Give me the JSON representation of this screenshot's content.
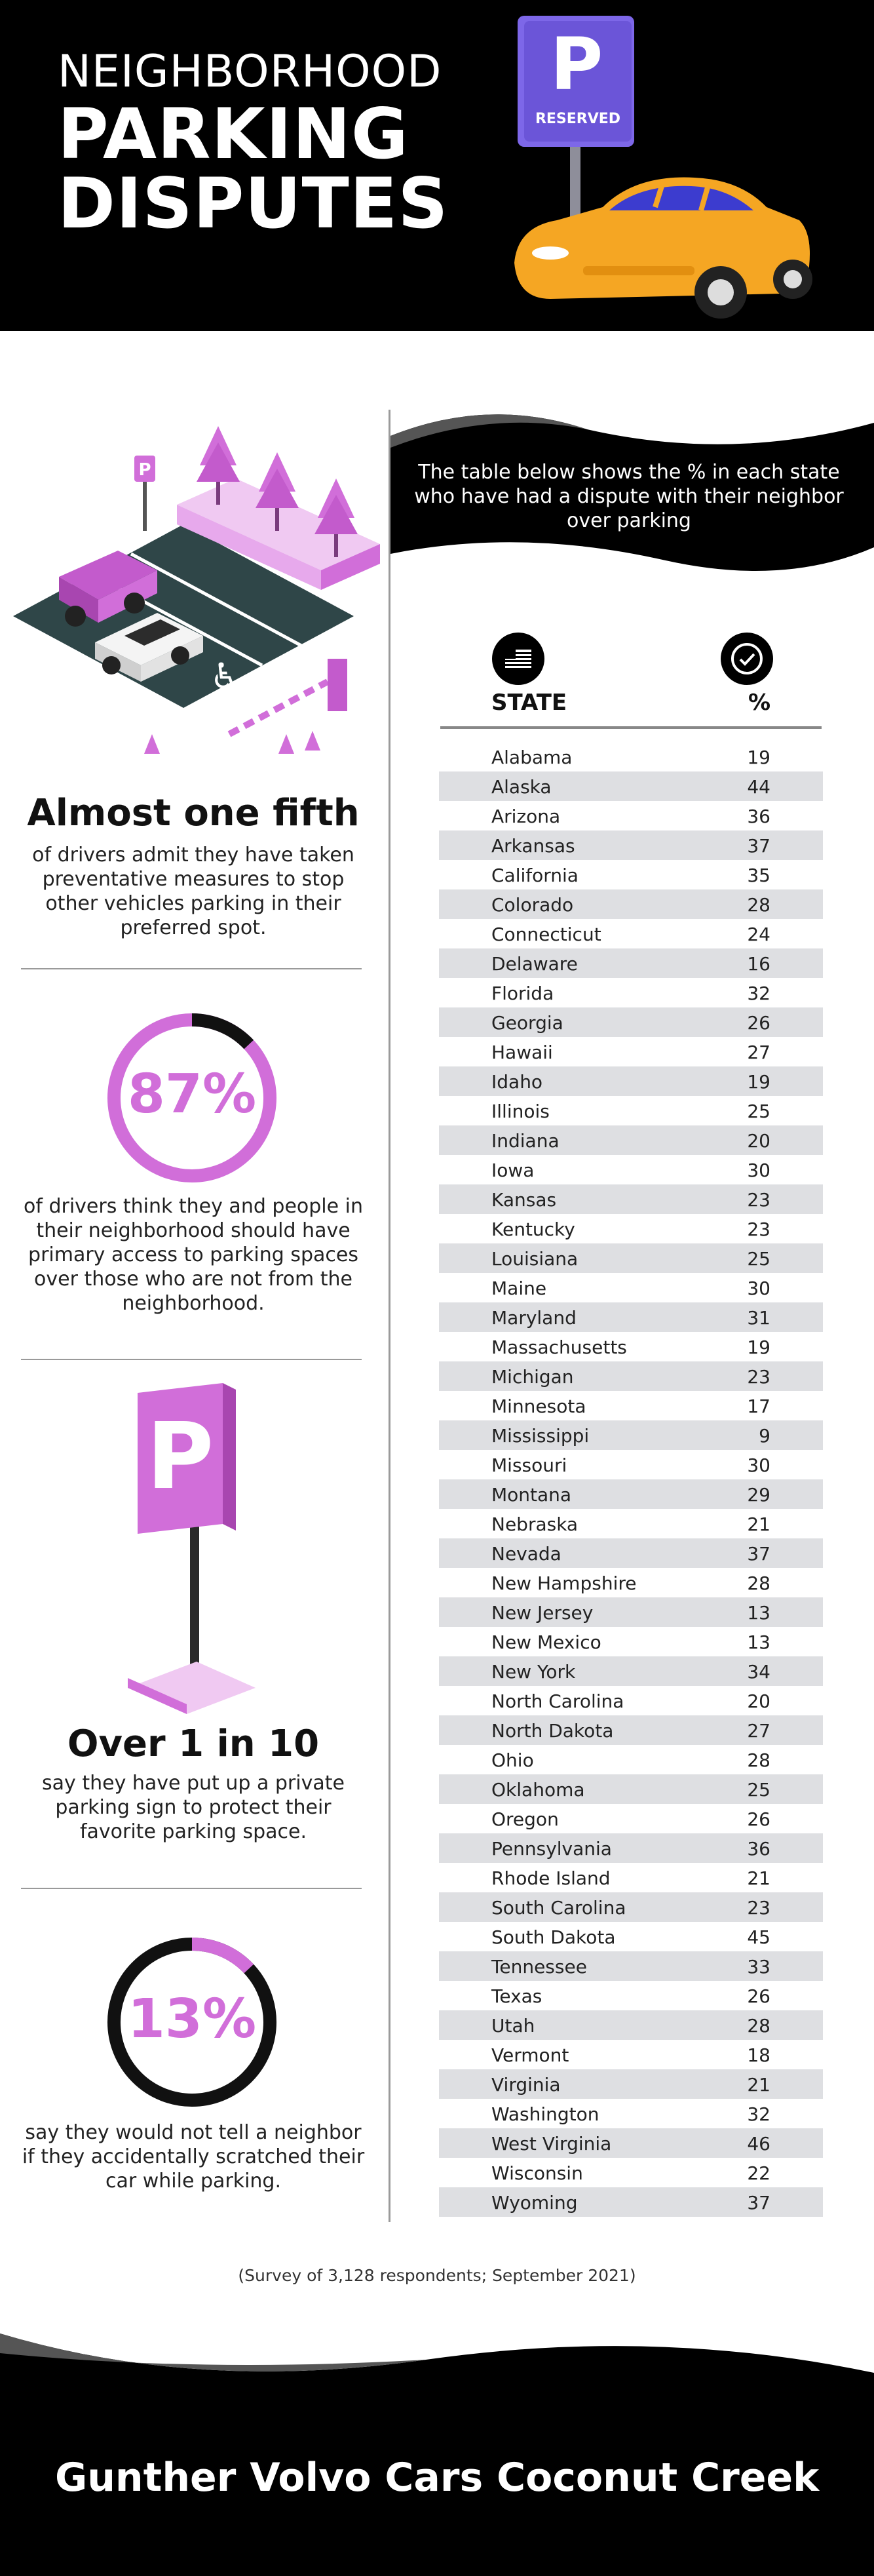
{
  "header": {
    "title_line1": "NEIGHBORHOOD",
    "title_line2": "PARKING",
    "title_line3": "DISPUTES",
    "sign_letter": "P",
    "sign_text": "RESERVED"
  },
  "stats": [
    {
      "heading": "Almost one fifth",
      "text": "of drivers admit they have taken preventative measures to stop other vehicles parking in their preferred spot."
    },
    {
      "percent": "87%",
      "percent_value": 87,
      "text": "of drivers think they and people in their neighborhood should have primary access to parking spaces over those who are not from the neighborhood."
    },
    {
      "heading": "Over 1 in 10",
      "text": "say they have put up a private parking sign to protect their favorite parking space."
    },
    {
      "percent": "13%",
      "percent_value": 13,
      "text": "say they would not tell a neighbor if they accidentally scratched their car while parking."
    }
  ],
  "table": {
    "intro": "The table below shows the % in each state who have had a dispute with their neighbor over parking",
    "col_state": "STATE",
    "col_pct": "%",
    "rows": [
      {
        "state": "Alabama",
        "pct": "19"
      },
      {
        "state": "Alaska",
        "pct": "44"
      },
      {
        "state": "Arizona",
        "pct": "36"
      },
      {
        "state": "Arkansas",
        "pct": "37"
      },
      {
        "state": "California",
        "pct": "35"
      },
      {
        "state": "Colorado",
        "pct": "28"
      },
      {
        "state": "Connecticut",
        "pct": "24"
      },
      {
        "state": "Delaware",
        "pct": "16"
      },
      {
        "state": "Florida",
        "pct": "32"
      },
      {
        "state": "Georgia",
        "pct": "26"
      },
      {
        "state": "Hawaii",
        "pct": "27"
      },
      {
        "state": "Idaho",
        "pct": "19"
      },
      {
        "state": "Illinois",
        "pct": "25"
      },
      {
        "state": "Indiana",
        "pct": "20"
      },
      {
        "state": "Iowa",
        "pct": "30"
      },
      {
        "state": "Kansas",
        "pct": "23"
      },
      {
        "state": "Kentucky",
        "pct": "23"
      },
      {
        "state": "Louisiana",
        "pct": "25"
      },
      {
        "state": "Maine",
        "pct": "30"
      },
      {
        "state": "Maryland",
        "pct": "31"
      },
      {
        "state": "Massachusetts",
        "pct": "19"
      },
      {
        "state": "Michigan",
        "pct": "23"
      },
      {
        "state": "Minnesota",
        "pct": "17"
      },
      {
        "state": "Mississippi",
        "pct": "9"
      },
      {
        "state": "Missouri",
        "pct": "30"
      },
      {
        "state": "Montana",
        "pct": "29"
      },
      {
        "state": "Nebraska",
        "pct": "21"
      },
      {
        "state": "Nevada",
        "pct": "37"
      },
      {
        "state": "New Hampshire",
        "pct": "28"
      },
      {
        "state": "New Jersey",
        "pct": "13"
      },
      {
        "state": "New Mexico",
        "pct": "13"
      },
      {
        "state": "New York",
        "pct": "34"
      },
      {
        "state": "North Carolina",
        "pct": "20"
      },
      {
        "state": "North Dakota",
        "pct": "27"
      },
      {
        "state": "Ohio",
        "pct": "28"
      },
      {
        "state": "Oklahoma",
        "pct": "25"
      },
      {
        "state": "Oregon",
        "pct": "26"
      },
      {
        "state": "Pennsylvania",
        "pct": "36"
      },
      {
        "state": "Rhode Island",
        "pct": "21"
      },
      {
        "state": "South Carolina",
        "pct": "23"
      },
      {
        "state": "South Dakota",
        "pct": "45"
      },
      {
        "state": "Tennessee",
        "pct": "33"
      },
      {
        "state": "Texas",
        "pct": "26"
      },
      {
        "state": "Utah",
        "pct": "28"
      },
      {
        "state": "Vermont",
        "pct": "18"
      },
      {
        "state": "Virginia",
        "pct": "21"
      },
      {
        "state": "Washington",
        "pct": "32"
      },
      {
        "state": "West Virginia",
        "pct": "46"
      },
      {
        "state": "Wisconsin",
        "pct": "22"
      },
      {
        "state": "Wyoming",
        "pct": "37"
      }
    ]
  },
  "footnote": "(Survey of 3,128 respondents; September 2021)",
  "footer": {
    "brand": "Gunther Volvo Cars Coconut Creek"
  },
  "colors": {
    "accent": "#d16ed9",
    "sign_purple": "#6b55d8",
    "car_orange": "#f5a623",
    "asphalt": "#2f4648"
  },
  "icons": {
    "state_col": "us-flag-icon",
    "pct_col": "check-badge-icon",
    "parking_sign": "parking-sign-icon"
  }
}
